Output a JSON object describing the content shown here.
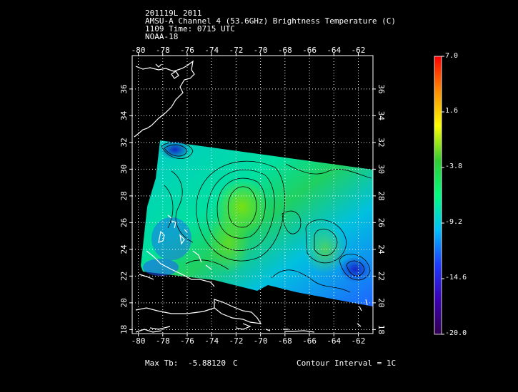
{
  "header": {
    "line1": "201119L 2011",
    "line2": "AMSU-A Channel 4 (53.6GHz) Brightness Temperature (C)",
    "line3": "1109 Time: 0715 UTC",
    "line4": "NOAA-18"
  },
  "map": {
    "lon_ticks": [
      "-80",
      "-78",
      "-76",
      "-74",
      "-72",
      "-70",
      "-68",
      "-66",
      "-64",
      "-62"
    ],
    "lat_ticks": [
      "36",
      "34",
      "32",
      "30",
      "28",
      "26",
      "24",
      "22",
      "20",
      "18"
    ],
    "lon_range": [
      -80.5,
      -60.8
    ],
    "lat_range": [
      17.7,
      38.5
    ]
  },
  "colorbar": {
    "labels": [
      "7.0",
      "1.6",
      "-3.8",
      "-9.2",
      "-14.6",
      "-20.0"
    ],
    "range": [
      -20.0,
      7.0
    ],
    "colors": [
      "#ff0000",
      "#ff8c00",
      "#ffff00",
      "#32cd32",
      "#00ff7f",
      "#00bfff",
      "#1e3cff",
      "#3c00b4",
      "#320050"
    ]
  },
  "footer": {
    "max_label": "Max Tb:",
    "max_value": "-5.88120",
    "max_unit": "C",
    "contour": "Contour Interval =  1C"
  }
}
